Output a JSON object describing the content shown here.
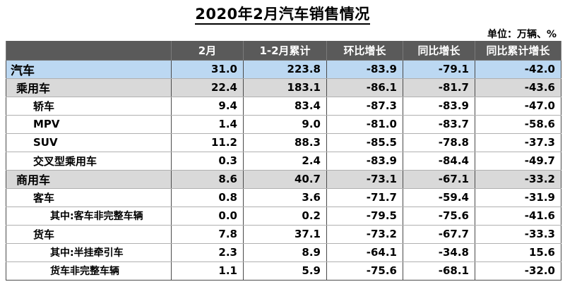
{
  "title": "2020年2月汽车销售情况",
  "unit": "单位：万辆、%",
  "columns": [
    "",
    "2月",
    "1-2月累计",
    "环比增长",
    "同比增长",
    "同比累计增长"
  ],
  "rows": [
    {
      "name": "汽车",
      "level": 0,
      "bg": "blue",
      "values": [
        "31.0",
        "223.8",
        "-83.9",
        "-79.1",
        "-42.0"
      ]
    },
    {
      "name": "乘用车",
      "level": 1,
      "bg": "gray",
      "values": [
        "22.4",
        "183.1",
        "-86.1",
        "-81.7",
        "-43.6"
      ]
    },
    {
      "name": "轿车",
      "level": 2,
      "bg": "white",
      "values": [
        "9.4",
        "83.4",
        "-87.3",
        "-83.9",
        "-47.0"
      ]
    },
    {
      "name": "MPV",
      "level": 2,
      "bg": "white",
      "values": [
        "1.4",
        "9.0",
        "-81.0",
        "-83.7",
        "-58.6"
      ]
    },
    {
      "name": "SUV",
      "level": 2,
      "bg": "white",
      "values": [
        "11.2",
        "88.3",
        "-85.5",
        "-78.8",
        "-37.3"
      ]
    },
    {
      "name": "交叉型乘用车",
      "level": 2,
      "bg": "white",
      "values": [
        "0.3",
        "2.4",
        "-83.9",
        "-84.4",
        "-49.7"
      ]
    },
    {
      "name": "商用车",
      "level": 1,
      "bg": "gray",
      "values": [
        "8.6",
        "40.7",
        "-73.1",
        "-67.1",
        "-33.2"
      ]
    },
    {
      "name": "客车",
      "level": 2,
      "bg": "white",
      "values": [
        "0.8",
        "3.6",
        "-71.7",
        "-59.4",
        "-31.9"
      ]
    },
    {
      "name": "其中:客车非完整车辆",
      "level": 3,
      "bg": "white",
      "values": [
        "0.0",
        "0.2",
        "-79.5",
        "-75.6",
        "-41.6"
      ]
    },
    {
      "name": "货车",
      "level": 2,
      "bg": "white",
      "values": [
        "7.8",
        "37.1",
        "-73.2",
        "-67.7",
        "-33.3"
      ]
    },
    {
      "name": "其中:半挂牵引车",
      "level": 3,
      "bg": "white",
      "values": [
        "2.3",
        "8.9",
        "-64.1",
        "-34.8",
        "15.6"
      ]
    },
    {
      "name": "货车非完整车辆",
      "level": 3,
      "bg": "white",
      "values": [
        "1.1",
        "5.9",
        "-75.6",
        "-68.1",
        "-32.0"
      ]
    }
  ],
  "colors": {
    "header_bg": "#5a5a5a",
    "total_row_bg": "#bcd8f2",
    "category_row_bg": "#d9d9d9"
  }
}
